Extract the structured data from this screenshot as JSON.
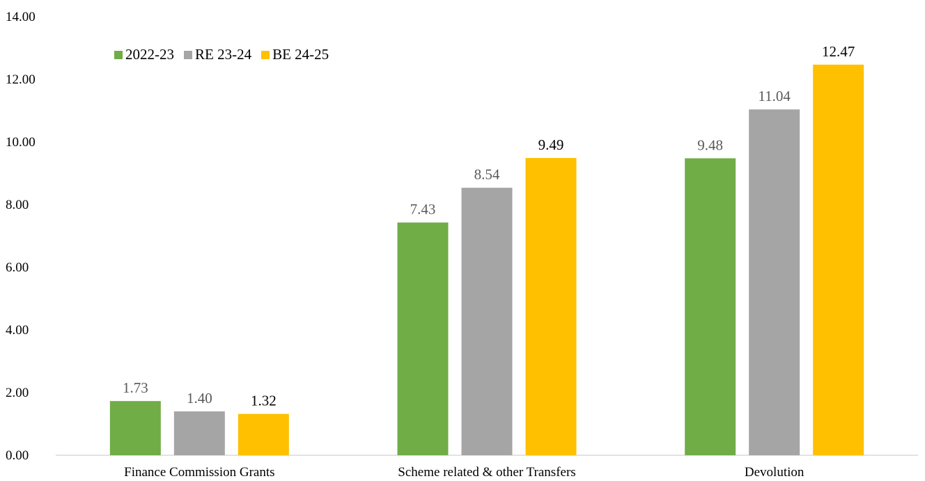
{
  "chart_data": {
    "type": "bar",
    "categories": [
      "Finance Commission Grants",
      "Scheme related & other Transfers",
      "Devolution"
    ],
    "series": [
      {
        "name": "2022-23",
        "color": "#70ad47",
        "label_color": "#595959",
        "values": [
          1.73,
          7.43,
          9.48
        ],
        "labels": [
          "1.73",
          "7.43",
          "9.48"
        ]
      },
      {
        "name": "RE 23-24",
        "color": "#a5a5a5",
        "label_color": "#595959",
        "values": [
          1.4,
          8.54,
          11.04
        ],
        "labels": [
          "1.40",
          "8.54",
          "11.04"
        ]
      },
      {
        "name": "BE 24-25",
        "color": "#ffc000",
        "label_color": "#000000",
        "values": [
          1.32,
          9.49,
          12.47
        ],
        "labels": [
          "1.32",
          "9.49",
          "12.47"
        ]
      }
    ],
    "ylim": [
      0,
      14
    ],
    "yticks": [
      "0.00",
      "2.00",
      "4.00",
      "6.00",
      "8.00",
      "10.00",
      "12.00",
      "14.00"
    ],
    "title": "",
    "xlabel": "",
    "ylabel": "",
    "grid": false,
    "legend_position": "top-left"
  }
}
